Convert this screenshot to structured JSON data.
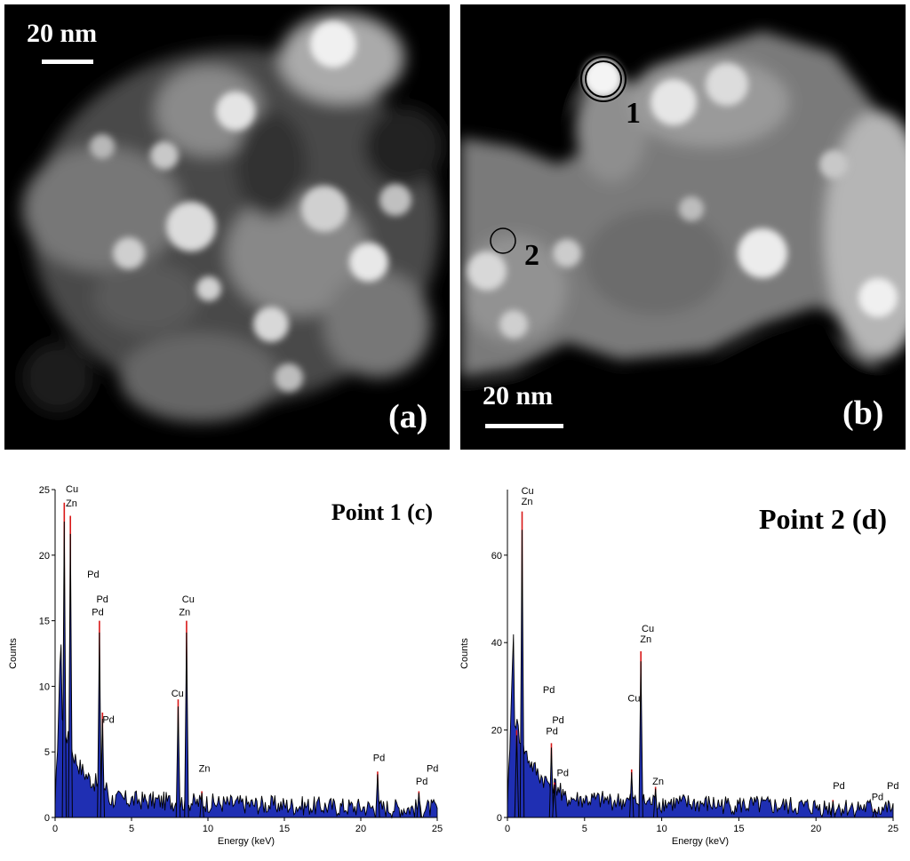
{
  "panel_a": {
    "label": "(a)",
    "scale": "20 nm"
  },
  "panel_b": {
    "label": "(b)",
    "scale": "20 nm",
    "point1": "1",
    "point2": "2"
  },
  "chart_data": [
    {
      "type": "bar",
      "title": "Point 1 (c)",
      "xlabel": "Energy (keV)",
      "ylabel": "Counts",
      "xlim": [
        0,
        25
      ],
      "ylim": [
        0,
        25
      ],
      "xticks": [
        0,
        5,
        10,
        15,
        20,
        25
      ],
      "yticks": [
        0,
        5,
        10,
        15,
        20,
        25
      ],
      "peaks": [
        {
          "x": 0.6,
          "y": 24
        },
        {
          "x": 1.0,
          "y": 23
        },
        {
          "x": 2.9,
          "y": 15
        },
        {
          "x": 3.1,
          "y": 8
        },
        {
          "x": 8.05,
          "y": 9
        },
        {
          "x": 8.6,
          "y": 15
        },
        {
          "x": 9.6,
          "y": 2
        },
        {
          "x": 21.1,
          "y": 3.5
        },
        {
          "x": 23.8,
          "y": 2
        }
      ],
      "annotations": [
        {
          "text": "Cu",
          "x": 0.7,
          "y": 24.8
        },
        {
          "text": "Zn",
          "x": 0.7,
          "y": 23.7
        },
        {
          "text": "Pd",
          "x": 2.1,
          "y": 18.3
        },
        {
          "text": "Pd",
          "x": 2.7,
          "y": 16.4
        },
        {
          "text": "Pd",
          "x": 2.4,
          "y": 15.4
        },
        {
          "text": "Pd",
          "x": 3.1,
          "y": 7.2
        },
        {
          "text": "Cu",
          "x": 8.3,
          "y": 16.4
        },
        {
          "text": "Zn",
          "x": 8.1,
          "y": 15.4
        },
        {
          "text": "Cu",
          "x": 7.6,
          "y": 9.2
        },
        {
          "text": "Zn",
          "x": 9.4,
          "y": 3.5
        },
        {
          "text": "Pd",
          "x": 20.8,
          "y": 4.3
        },
        {
          "text": "Pd",
          "x": 24.3,
          "y": 3.5
        },
        {
          "text": "Pd",
          "x": 23.6,
          "y": 2.5
        }
      ]
    },
    {
      "type": "bar",
      "title": "Point 2 (d)",
      "xlabel": "Energy (keV)",
      "ylabel": "Counts",
      "xlim": [
        0,
        25
      ],
      "ylim": [
        0,
        75
      ],
      "xticks": [
        0,
        5,
        10,
        15,
        20,
        25
      ],
      "yticks": [
        0,
        20,
        40,
        60
      ],
      "peaks": [
        {
          "x": 0.6,
          "y": 20
        },
        {
          "x": 0.95,
          "y": 70
        },
        {
          "x": 2.85,
          "y": 17
        },
        {
          "x": 3.05,
          "y": 8
        },
        {
          "x": 8.05,
          "y": 11
        },
        {
          "x": 8.65,
          "y": 38
        },
        {
          "x": 9.6,
          "y": 7
        },
        {
          "x": 21.1,
          "y": 4
        },
        {
          "x": 23.8,
          "y": 2
        }
      ],
      "annotations": [
        {
          "text": "Cu",
          "x": 0.9,
          "y": 74
        },
        {
          "text": "Zn",
          "x": 0.9,
          "y": 71.5
        },
        {
          "text": "Pd",
          "x": 2.3,
          "y": 28.5
        },
        {
          "text": "Pd",
          "x": 2.9,
          "y": 21.5
        },
        {
          "text": "Pd",
          "x": 2.5,
          "y": 19
        },
        {
          "text": "Pd",
          "x": 3.2,
          "y": 9.5
        },
        {
          "text": "Cu",
          "x": 8.7,
          "y": 42.5
        },
        {
          "text": "Zn",
          "x": 8.6,
          "y": 40
        },
        {
          "text": "Cu",
          "x": 7.8,
          "y": 26.5
        },
        {
          "text": "Zn",
          "x": 9.4,
          "y": 7.5
        },
        {
          "text": "Pd",
          "x": 21.1,
          "y": 6.5
        },
        {
          "text": "Pd",
          "x": 24.6,
          "y": 6.5
        },
        {
          "text": "Pd",
          "x": 23.6,
          "y": 4
        }
      ]
    }
  ]
}
